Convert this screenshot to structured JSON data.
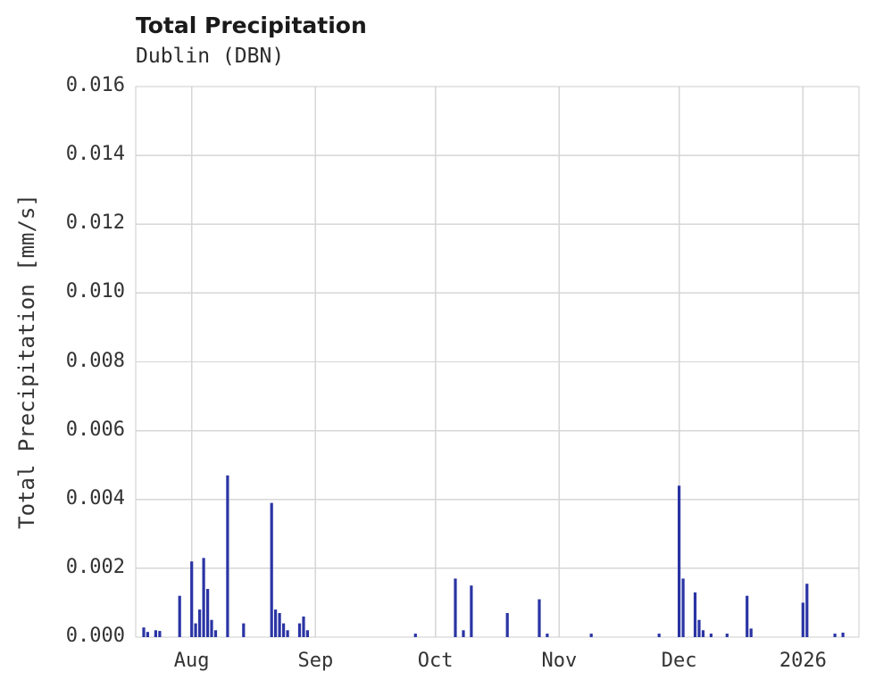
{
  "page": {
    "background": "#ffffff"
  },
  "chart_data": {
    "type": "bar",
    "title": "Total Precipitation",
    "subtitle": "Dublin (DBN)",
    "xlabel": "",
    "ylabel": "Total Precipitation [mm/s]",
    "ylim": [
      0,
      0.016
    ],
    "grid": true,
    "legend": "none",
    "bar_color": "#2a34a4",
    "grid_color": "#d6d6d6",
    "border_color": "#cccccc",
    "axis_text_color": "#333333",
    "x_domain": [
      "2025-07-18",
      "2026-01-15"
    ],
    "yticks": [
      {
        "value": 0.0,
        "label": "0.000"
      },
      {
        "value": 0.002,
        "label": "0.002"
      },
      {
        "value": 0.004,
        "label": "0.004"
      },
      {
        "value": 0.006,
        "label": "0.006"
      },
      {
        "value": 0.008,
        "label": "0.008"
      },
      {
        "value": 0.01,
        "label": "0.010"
      },
      {
        "value": 0.012,
        "label": "0.012"
      },
      {
        "value": 0.014,
        "label": "0.014"
      },
      {
        "value": 0.016,
        "label": "0.016"
      }
    ],
    "xticks": [
      {
        "date": "2025-08-01",
        "label": "Aug"
      },
      {
        "date": "2025-09-01",
        "label": "Sep"
      },
      {
        "date": "2025-10-01",
        "label": "Oct"
      },
      {
        "date": "2025-11-01",
        "label": "Nov"
      },
      {
        "date": "2025-12-01",
        "label": "Dec"
      },
      {
        "date": "2026-01-01",
        "label": "2026"
      }
    ],
    "points": [
      {
        "date": "2025-07-20",
        "value": 0.00028
      },
      {
        "date": "2025-07-21",
        "value": 0.00015
      },
      {
        "date": "2025-07-23",
        "value": 0.0002
      },
      {
        "date": "2025-07-24",
        "value": 0.00018
      },
      {
        "date": "2025-07-29",
        "value": 0.0012
      },
      {
        "date": "2025-08-01",
        "value": 0.0022
      },
      {
        "date": "2025-08-02",
        "value": 0.0004
      },
      {
        "date": "2025-08-03",
        "value": 0.0008
      },
      {
        "date": "2025-08-04",
        "value": 0.0023
      },
      {
        "date": "2025-08-05",
        "value": 0.0014
      },
      {
        "date": "2025-08-06",
        "value": 0.0005
      },
      {
        "date": "2025-08-07",
        "value": 0.0002
      },
      {
        "date": "2025-08-10",
        "value": 0.0047
      },
      {
        "date": "2025-08-14",
        "value": 0.0004
      },
      {
        "date": "2025-08-21",
        "value": 0.0039
      },
      {
        "date": "2025-08-22",
        "value": 0.0008
      },
      {
        "date": "2025-08-23",
        "value": 0.0007
      },
      {
        "date": "2025-08-24",
        "value": 0.0004
      },
      {
        "date": "2025-08-25",
        "value": 0.0002
      },
      {
        "date": "2025-08-28",
        "value": 0.0004
      },
      {
        "date": "2025-08-29",
        "value": 0.0006
      },
      {
        "date": "2025-08-30",
        "value": 0.0002
      },
      {
        "date": "2025-09-26",
        "value": 0.0001
      },
      {
        "date": "2025-10-06",
        "value": 0.0017
      },
      {
        "date": "2025-10-08",
        "value": 0.0002
      },
      {
        "date": "2025-10-10",
        "value": 0.0015
      },
      {
        "date": "2025-10-19",
        "value": 0.0007
      },
      {
        "date": "2025-10-27",
        "value": 0.0011
      },
      {
        "date": "2025-10-29",
        "value": 0.0001
      },
      {
        "date": "2025-11-09",
        "value": 0.0001
      },
      {
        "date": "2025-11-26",
        "value": 0.0001
      },
      {
        "date": "2025-12-01",
        "value": 0.0044
      },
      {
        "date": "2025-12-02",
        "value": 0.0017
      },
      {
        "date": "2025-12-05",
        "value": 0.0013
      },
      {
        "date": "2025-12-06",
        "value": 0.0005
      },
      {
        "date": "2025-12-07",
        "value": 0.0002
      },
      {
        "date": "2025-12-09",
        "value": 0.0001
      },
      {
        "date": "2025-12-13",
        "value": 0.0001
      },
      {
        "date": "2025-12-18",
        "value": 0.0012
      },
      {
        "date": "2025-12-19",
        "value": 0.00025
      },
      {
        "date": "2026-01-01",
        "value": 0.001
      },
      {
        "date": "2026-01-02",
        "value": 0.00155
      },
      {
        "date": "2026-01-09",
        "value": 0.0001
      },
      {
        "date": "2026-01-11",
        "value": 0.00013
      }
    ]
  }
}
